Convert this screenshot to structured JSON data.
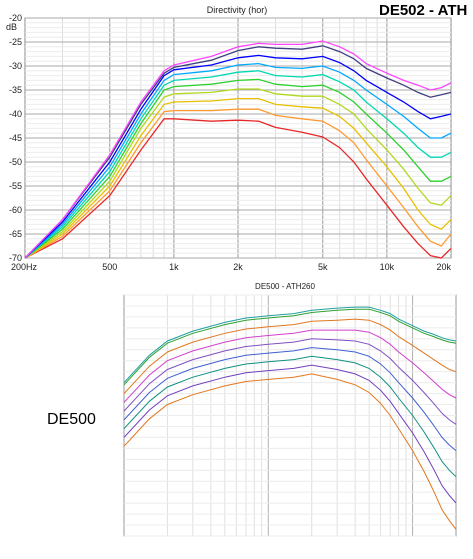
{
  "page": {
    "heading": "DE502 - ATH",
    "side_label": "DE500"
  },
  "chart_data": [
    {
      "type": "line",
      "title": "Directivity (hor)",
      "ylabel": "dB",
      "x_scale": "log",
      "xlim": [
        200,
        20000
      ],
      "ylim": [
        -70,
        -20
      ],
      "x_ticks": [
        200,
        500,
        1000,
        2000,
        5000,
        10000,
        20000
      ],
      "x_tick_labels": [
        "200Hz",
        "500",
        "1k",
        "2k",
        "5k",
        "10k",
        "20k"
      ],
      "y_ticks": [
        -20,
        -25,
        -30,
        -35,
        -40,
        -45,
        -50,
        -55,
        -60,
        -65,
        -70
      ],
      "y_tick_labels": [
        "-20",
        "-25",
        "-30",
        "-35",
        "-40",
        "-45",
        "-50",
        "-55",
        "-60",
        "-65",
        "-70"
      ],
      "grid": true,
      "x": [
        200,
        300,
        500,
        700,
        900,
        1000,
        1500,
        2000,
        2500,
        3000,
        4000,
        5000,
        6000,
        7000,
        8000,
        10000,
        12000,
        14000,
        16000,
        18000,
        20000
      ],
      "series": [
        {
          "color": "#ff44ff",
          "values": [
            -70,
            -62,
            -48.5,
            -37.5,
            -31,
            -29.8,
            -28,
            -26,
            -25.3,
            -25.5,
            -25.5,
            -24.8,
            -26,
            -27.5,
            -29.5,
            -31.5,
            -33,
            -34,
            -35,
            -34.5,
            -33.5
          ]
        },
        {
          "color": "#3f3f7f",
          "values": [
            -70,
            -62,
            -49,
            -38,
            -31.5,
            -30.3,
            -28.8,
            -26.8,
            -26,
            -26.3,
            -26.5,
            -25.8,
            -27,
            -28.5,
            -30.5,
            -32.5,
            -34,
            -35.5,
            -36.5,
            -36,
            -35.5
          ]
        },
        {
          "color": "#0000ff",
          "values": [
            -70,
            -62.5,
            -50,
            -39,
            -32,
            -30.8,
            -29.8,
            -28.3,
            -27.8,
            -28.3,
            -28.5,
            -28,
            -29.3,
            -31,
            -33,
            -35.5,
            -37.5,
            -39.5,
            -41,
            -40.5,
            -40
          ]
        },
        {
          "color": "#00a8ff",
          "values": [
            -70,
            -63,
            -51,
            -40,
            -33,
            -31.8,
            -31,
            -29.8,
            -29.5,
            -30.3,
            -30.5,
            -30,
            -31.3,
            -33,
            -35,
            -38,
            -40.5,
            -43,
            -45,
            -45,
            -44
          ]
        },
        {
          "color": "#00d8b0",
          "values": [
            -70,
            -63.5,
            -52,
            -41,
            -34,
            -33,
            -32.3,
            -31.3,
            -31,
            -32,
            -32.3,
            -31.8,
            -33.3,
            -35,
            -37.5,
            -41,
            -44,
            -47,
            -49,
            -49,
            -48
          ]
        },
        {
          "color": "#30d030",
          "values": [
            -70,
            -64,
            -53,
            -42,
            -35,
            -34.3,
            -33.8,
            -33,
            -32.8,
            -33.8,
            -34.3,
            -34,
            -35.5,
            -37.5,
            -40,
            -44,
            -47.5,
            -51,
            -54,
            -54,
            -53
          ]
        },
        {
          "color": "#b0d820",
          "values": [
            -70,
            -64.5,
            -54,
            -43,
            -36.5,
            -35.8,
            -35.5,
            -34.8,
            -34.8,
            -35.8,
            -36.3,
            -36.3,
            -38,
            -40,
            -43,
            -47.5,
            -51.5,
            -55.5,
            -58.5,
            -59,
            -57
          ]
        },
        {
          "color": "#e8c000",
          "values": [
            -70,
            -65,
            -55,
            -44.5,
            -38,
            -37.5,
            -37.3,
            -36.8,
            -36.8,
            -38,
            -38.5,
            -38.8,
            -40.5,
            -43,
            -46,
            -51,
            -55.5,
            -60,
            -63,
            -64,
            -62
          ]
        },
        {
          "color": "#ff9a30",
          "values": [
            -70,
            -65.5,
            -56,
            -46,
            -39.5,
            -39.3,
            -39.3,
            -39,
            -39,
            -40.3,
            -41,
            -41.5,
            -43.5,
            -46,
            -49.5,
            -55,
            -59.5,
            -63.5,
            -66.5,
            -67.5,
            -65
          ]
        },
        {
          "color": "#e82828",
          "values": [
            -70,
            -66,
            -57,
            -47.5,
            -41,
            -41,
            -41.5,
            -41.3,
            -41.5,
            -42.8,
            -43.8,
            -44.8,
            -47,
            -50,
            -53.5,
            -59,
            -63.5,
            -67,
            -69.5,
            -70,
            -68
          ]
        }
      ]
    },
    {
      "type": "line",
      "title": "DE500 - ATH260",
      "x_scale": "log",
      "xlim": [
        100,
        20000
      ],
      "grid": true,
      "x": [
        100,
        150,
        200,
        300,
        500,
        700,
        1000,
        1500,
        2000,
        3000,
        4000,
        5000,
        6000,
        7000,
        8000,
        10000,
        12000,
        14000,
        16000,
        18000,
        20000
      ],
      "series": [
        {
          "color": "#20a0a0",
          "values": [
            8,
            5.5,
            4.2,
            3.3,
            2.5,
            2.1,
            1.9,
            1.7,
            1.4,
            1.2,
            1.1,
            1.1,
            1.4,
            1.7,
            2.2,
            2.8,
            3.3,
            3.6,
            3.9,
            4.1,
            4.2
          ]
        },
        {
          "color": "#30a030",
          "values": [
            8.2,
            5.7,
            4.4,
            3.5,
            2.7,
            2.3,
            2.1,
            1.9,
            1.6,
            1.4,
            1.3,
            1.3,
            1.6,
            1.9,
            2.4,
            3.0,
            3.5,
            3.8,
            4.1,
            4.3,
            4.4
          ]
        },
        {
          "color": "#e07820",
          "values": [
            9.0,
            6.5,
            5.2,
            4.3,
            3.5,
            3.1,
            2.9,
            2.7,
            2.4,
            2.3,
            2.2,
            2.3,
            2.7,
            3.2,
            3.8,
            4.6,
            5.3,
            5.9,
            6.4,
            6.8,
            7.0
          ]
        },
        {
          "color": "#d040d0",
          "values": [
            9.8,
            7.3,
            6.0,
            5.1,
            4.3,
            3.9,
            3.7,
            3.5,
            3.2,
            3.2,
            3.2,
            3.4,
            3.9,
            4.5,
            5.2,
            6.2,
            7.1,
            7.9,
            8.6,
            9.1,
            9.4
          ]
        },
        {
          "color": "#8050c0",
          "values": [
            10.6,
            8.1,
            6.8,
            5.9,
            5.1,
            4.7,
            4.5,
            4.3,
            4.0,
            4.1,
            4.2,
            4.5,
            5.1,
            5.8,
            6.6,
            7.8,
            8.9,
            9.9,
            10.8,
            11.4,
            11.8
          ]
        },
        {
          "color": "#4060d0",
          "values": [
            11.4,
            8.9,
            7.6,
            6.7,
            5.9,
            5.5,
            5.3,
            5.1,
            4.8,
            5.0,
            5.2,
            5.6,
            6.3,
            7.1,
            8.0,
            9.4,
            10.7,
            11.9,
            13.0,
            13.7,
            14.2
          ]
        },
        {
          "color": "#109080",
          "values": [
            12.2,
            9.7,
            8.4,
            7.5,
            6.7,
            6.3,
            6.1,
            5.9,
            5.6,
            5.9,
            6.2,
            6.7,
            7.5,
            8.4,
            9.4,
            11.0,
            12.5,
            13.9,
            15.2,
            16.0,
            16.6
          ]
        },
        {
          "color": "#7040c0",
          "values": [
            13.0,
            10.5,
            9.2,
            8.3,
            7.5,
            7.1,
            6.9,
            6.7,
            6.4,
            6.8,
            7.2,
            7.8,
            8.7,
            9.7,
            10.8,
            12.6,
            14.3,
            15.9,
            17.4,
            18.3,
            19.0
          ]
        },
        {
          "color": "#e07820",
          "values": [
            13.8,
            11.3,
            10.0,
            9.1,
            8.3,
            7.9,
            7.7,
            7.5,
            7.2,
            7.7,
            8.2,
            8.9,
            9.9,
            11.0,
            12.2,
            14.2,
            16.1,
            17.9,
            19.6,
            20.6,
            21.4
          ]
        }
      ]
    }
  ]
}
